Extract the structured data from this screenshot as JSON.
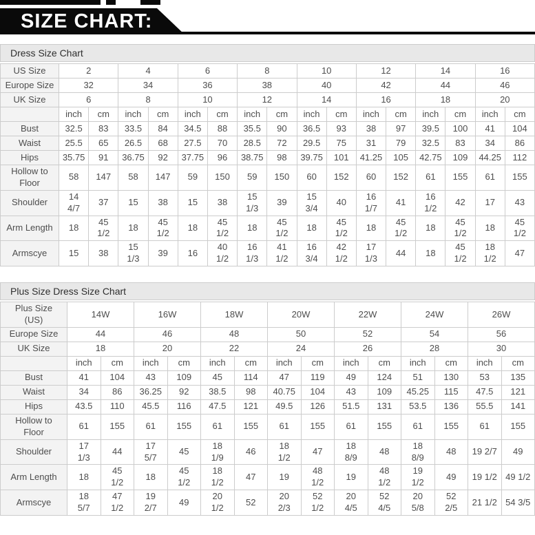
{
  "banner": {
    "title": "SIZE CHART:"
  },
  "colors": {
    "banner_bg": "#0a0a0a",
    "banner_text": "#ffffff",
    "title_bar_bg": "#e8e8e8",
    "label_cell_bg": "#f3f3f3",
    "cell_bg": "#ffffff",
    "border": "#cccccc",
    "text": "#4d4d4d"
  },
  "tables": [
    {
      "title": "Dress Size Chart",
      "unit_header": [
        "inch",
        "cm"
      ],
      "size_rows": [
        {
          "label": "US Size",
          "values": [
            "2",
            "4",
            "6",
            "8",
            "10",
            "12",
            "14",
            "16"
          ]
        },
        {
          "label": "Europe Size",
          "values": [
            "32",
            "34",
            "36",
            "38",
            "40",
            "42",
            "44",
            "46"
          ]
        },
        {
          "label": "UK Size",
          "values": [
            "6",
            "8",
            "10",
            "12",
            "14",
            "16",
            "18",
            "20"
          ]
        }
      ],
      "measure_rows": [
        {
          "label": "Bust",
          "cells": [
            "32.5",
            "83",
            "33.5",
            "84",
            "34.5",
            "88",
            "35.5",
            "90",
            "36.5",
            "93",
            "38",
            "97",
            "39.5",
            "100",
            "41",
            "104"
          ]
        },
        {
          "label": "Waist",
          "cells": [
            "25.5",
            "65",
            "26.5",
            "68",
            "27.5",
            "70",
            "28.5",
            "72",
            "29.5",
            "75",
            "31",
            "79",
            "32.5",
            "83",
            "34",
            "86"
          ]
        },
        {
          "label": "Hips",
          "cells": [
            "35.75",
            "91",
            "36.75",
            "92",
            "37.75",
            "96",
            "38.75",
            "98",
            "39.75",
            "101",
            "41.25",
            "105",
            "42.75",
            "109",
            "44.25",
            "112"
          ]
        },
        {
          "label": "Hollow to Floor",
          "cells": [
            "58",
            "147",
            "58",
            "147",
            "59",
            "150",
            "59",
            "150",
            "60",
            "152",
            "60",
            "152",
            "61",
            "155",
            "61",
            "155"
          ]
        },
        {
          "label": "Shoulder",
          "cells": [
            "14\n4/7",
            "37",
            "15",
            "38",
            "15",
            "38",
            "15\n1/3",
            "39",
            "15\n3/4",
            "40",
            "16\n1/7",
            "41",
            "16\n1/2",
            "42",
            "17",
            "43"
          ]
        },
        {
          "label": "Arm Length",
          "cells": [
            "18",
            "45\n1/2",
            "18",
            "45\n1/2",
            "18",
            "45\n1/2",
            "18",
            "45\n1/2",
            "18",
            "45\n1/2",
            "18",
            "45\n1/2",
            "18",
            "45\n1/2",
            "18",
            "45\n1/2"
          ]
        },
        {
          "label": "Armscye",
          "cells": [
            "15",
            "38",
            "15\n1/3",
            "39",
            "16",
            "40\n1/2",
            "16\n1/3",
            "41\n1/2",
            "16\n3/4",
            "42\n1/2",
            "17\n1/3",
            "44",
            "18",
            "45\n1/2",
            "18\n1/2",
            "47"
          ]
        }
      ]
    },
    {
      "title": "Plus Size Dress Size Chart",
      "unit_header": [
        "inch",
        "cm"
      ],
      "size_rows": [
        {
          "label": "Plus Size (US)",
          "values": [
            "14W",
            "16W",
            "18W",
            "20W",
            "22W",
            "24W",
            "26W"
          ]
        },
        {
          "label": "Europe Size",
          "values": [
            "44",
            "46",
            "48",
            "50",
            "52",
            "54",
            "56"
          ]
        },
        {
          "label": "UK Size",
          "values": [
            "18",
            "20",
            "22",
            "24",
            "26",
            "28",
            "30"
          ]
        }
      ],
      "measure_rows": [
        {
          "label": "Bust",
          "cells": [
            "41",
            "104",
            "43",
            "109",
            "45",
            "114",
            "47",
            "119",
            "49",
            "124",
            "51",
            "130",
            "53",
            "135"
          ]
        },
        {
          "label": "Waist",
          "cells": [
            "34",
            "86",
            "36.25",
            "92",
            "38.5",
            "98",
            "40.75",
            "104",
            "43",
            "109",
            "45.25",
            "115",
            "47.5",
            "121"
          ]
        },
        {
          "label": "Hips",
          "cells": [
            "43.5",
            "110",
            "45.5",
            "116",
            "47.5",
            "121",
            "49.5",
            "126",
            "51.5",
            "131",
            "53.5",
            "136",
            "55.5",
            "141"
          ]
        },
        {
          "label": "Hollow to Floor",
          "cells": [
            "61",
            "155",
            "61",
            "155",
            "61",
            "155",
            "61",
            "155",
            "61",
            "155",
            "61",
            "155",
            "61",
            "155"
          ]
        },
        {
          "label": "Shoulder",
          "cells": [
            "17\n1/3",
            "44",
            "17\n5/7",
            "45",
            "18\n1/9",
            "46",
            "18\n1/2",
            "47",
            "18\n8/9",
            "48",
            "18\n8/9",
            "48",
            "19 2/7",
            "49"
          ]
        },
        {
          "label": "Arm Length",
          "cells": [
            "18",
            "45\n1/2",
            "18",
            "45\n1/2",
            "18\n1/2",
            "47",
            "19",
            "48\n1/2",
            "19",
            "48\n1/2",
            "19\n1/2",
            "49",
            "19 1/2",
            "49 1/2"
          ]
        },
        {
          "label": "Armscye",
          "cells": [
            "18\n5/7",
            "47\n1/2",
            "19\n2/7",
            "49",
            "20\n1/2",
            "52",
            "20\n2/3",
            "52\n1/2",
            "20\n4/5",
            "52\n4/5",
            "20\n5/8",
            "52\n2/5",
            "21 1/2",
            "54 3/5"
          ]
        }
      ]
    }
  ]
}
